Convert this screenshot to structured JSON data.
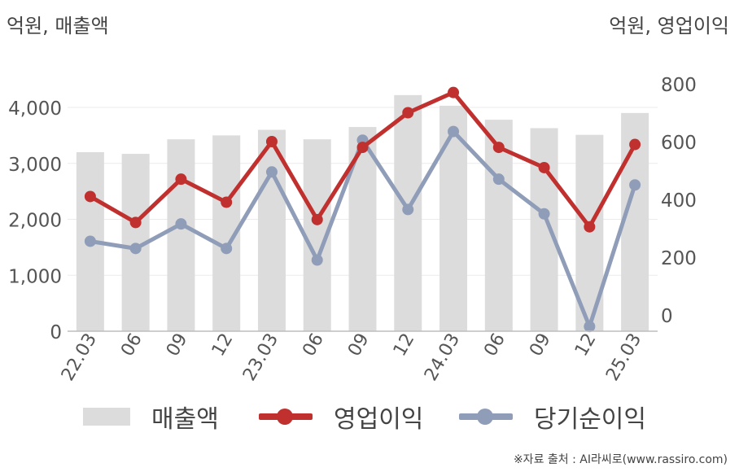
{
  "left_unit_label": "억원, 매출액",
  "right_unit_label": "억원, 영업이익",
  "source": "※자료 출처 : AI라씨로(www.rassiro.com)",
  "legend": {
    "revenue": "매출액",
    "operating_profit": "영업이익",
    "net_income": "당기순이익"
  },
  "colors": {
    "revenue": "#dcdcdc",
    "operating_profit": "#c0302e",
    "net_income": "#8f9db8"
  },
  "chart_data": {
    "type": "bar",
    "categories": [
      "22.03",
      "06",
      "09",
      "12",
      "23.03",
      "06",
      "09",
      "12",
      "24.03",
      "06",
      "09",
      "12",
      "25.03"
    ],
    "series": [
      {
        "name": "매출액",
        "type": "bar",
        "axis": "left",
        "values": [
          3200,
          3170,
          3430,
          3500,
          3600,
          3430,
          3650,
          4220,
          4030,
          3780,
          3630,
          3510,
          3900
        ]
      },
      {
        "name": "영업이익",
        "type": "line",
        "axis": "right",
        "values": [
          410,
          320,
          470,
          390,
          600,
          330,
          580,
          700,
          770,
          580,
          510,
          305,
          590
        ]
      },
      {
        "name": "당기순이익",
        "type": "line",
        "axis": "right",
        "values": [
          255,
          230,
          315,
          230,
          495,
          190,
          605,
          365,
          635,
          470,
          350,
          -40,
          450
        ]
      }
    ],
    "left_axis": {
      "ticks": [
        "0",
        "1,000",
        "2,000",
        "3,000",
        "4,000"
      ],
      "range": [
        0,
        4000
      ]
    },
    "right_axis": {
      "ticks": [
        "0",
        "200",
        "400",
        "600",
        "800"
      ],
      "range": [
        0,
        800
      ]
    },
    "grid": true,
    "legend_position": "bottom"
  }
}
